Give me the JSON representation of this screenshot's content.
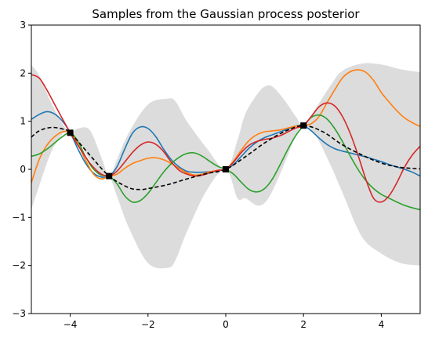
{
  "chart_data": {
    "type": "line",
    "title": "Samples from the Gaussian process posterior",
    "xlabel": "",
    "ylabel": "",
    "xlim": [
      -5,
      5
    ],
    "ylim": [
      -3,
      3
    ],
    "x_ticks": [
      -4,
      -2,
      0,
      2,
      4
    ],
    "x_tick_labels": [
      "−4",
      "−2",
      "0",
      "2",
      "4"
    ],
    "y_ticks": [
      -3,
      -2,
      -1,
      0,
      1,
      2,
      3
    ],
    "y_tick_labels": [
      "−3",
      "−2",
      "−1",
      "0",
      "1",
      "2",
      "3"
    ],
    "grid": false,
    "legend": "none",
    "observations": {
      "x": [
        -4,
        -3,
        0,
        2
      ],
      "y": [
        0.76,
        -0.14,
        0.0,
        0.91
      ],
      "color": "#000000"
    },
    "posterior_mean": {
      "color": "#000000",
      "style": "dashed",
      "x": [
        -5,
        -4.8,
        -4.5,
        -4.2,
        -4,
        -3.5,
        -3,
        -2.5,
        -2.2,
        -2,
        -1.5,
        -1,
        -0.5,
        0,
        0.5,
        1,
        1.5,
        2,
        2.5,
        3,
        3.5,
        4,
        4.5,
        5
      ],
      "y": [
        0.67,
        0.8,
        0.87,
        0.84,
        0.76,
        0.3,
        -0.14,
        -0.38,
        -0.42,
        -0.4,
        -0.32,
        -0.2,
        -0.09,
        0.0,
        0.26,
        0.55,
        0.78,
        0.91,
        0.78,
        0.51,
        0.3,
        0.13,
        0.04,
        0.01
      ]
    },
    "confidence_band": {
      "color": "#dcdcdc",
      "x": [
        -5,
        -4.8,
        -4.5,
        -4.2,
        -4,
        -3.8,
        -3.5,
        -3.2,
        -3,
        -2.8,
        -2.5,
        -2,
        -1.5,
        -1.3,
        -1,
        -0.5,
        0,
        0.3,
        0.5,
        0.8,
        1,
        1.2,
        1.5,
        1.8,
        2,
        2.3,
        2.7,
        3,
        3.5,
        4,
        4.5,
        5
      ],
      "upper": [
        2.17,
        1.95,
        1.4,
        0.95,
        0.76,
        0.85,
        0.82,
        0.25,
        -0.14,
        0.2,
        0.75,
        1.35,
        1.47,
        1.42,
        1.0,
        0.45,
        0.0,
        0.6,
        1.15,
        1.55,
        1.72,
        1.72,
        1.45,
        1.1,
        0.91,
        1.25,
        1.75,
        2.05,
        2.2,
        2.18,
        2.08,
        2.02
      ],
      "lower": [
        -0.83,
        -0.35,
        0.34,
        0.73,
        0.76,
        0.6,
        0.2,
        -0.2,
        -0.14,
        -0.55,
        -1.2,
        -1.95,
        -2.05,
        -1.9,
        -1.3,
        -0.45,
        0.0,
        -0.6,
        -0.6,
        -0.75,
        -0.7,
        -0.45,
        0.1,
        0.7,
        0.91,
        0.72,
        0.08,
        -0.48,
        -1.4,
        -1.75,
        -1.95,
        -2.0
      ]
    },
    "series": [
      {
        "color": "#1f77b4",
        "x": [
          -5,
          -4.8,
          -4.6,
          -4.4,
          -4.2,
          -4,
          -3.8,
          -3.6,
          -3.4,
          -3.2,
          -3,
          -2.8,
          -2.6,
          -2.4,
          -2.2,
          -2,
          -1.8,
          -1.6,
          -1.4,
          -1.2,
          -1,
          -0.8,
          -0.6,
          -0.4,
          -0.2,
          0,
          0.2,
          0.4,
          0.6,
          0.8,
          1,
          1.2,
          1.4,
          1.6,
          1.8,
          2,
          2.2,
          2.4,
          2.6,
          2.8,
          3,
          3.2,
          3.4,
          3.6,
          3.8,
          4,
          4.2,
          4.4,
          4.6,
          4.8,
          5
        ],
        "y": [
          1.04,
          1.14,
          1.2,
          1.15,
          1.0,
          0.76,
          0.42,
          0.12,
          -0.08,
          -0.16,
          -0.14,
          0.05,
          0.42,
          0.75,
          0.88,
          0.85,
          0.68,
          0.42,
          0.2,
          0.05,
          -0.04,
          -0.06,
          -0.06,
          -0.05,
          -0.03,
          0.0,
          0.1,
          0.27,
          0.44,
          0.57,
          0.66,
          0.72,
          0.78,
          0.84,
          0.9,
          0.91,
          0.8,
          0.65,
          0.52,
          0.43,
          0.38,
          0.34,
          0.3,
          0.26,
          0.21,
          0.16,
          0.1,
          0.05,
          0.0,
          -0.06,
          -0.14
        ]
      },
      {
        "color": "#ff7f0e",
        "x": [
          -5,
          -4.8,
          -4.6,
          -4.4,
          -4.2,
          -4,
          -3.8,
          -3.6,
          -3.4,
          -3.2,
          -3,
          -2.8,
          -2.6,
          -2.4,
          -2.2,
          -2,
          -1.8,
          -1.6,
          -1.4,
          -1.2,
          -1,
          -0.8,
          -0.6,
          -0.4,
          -0.2,
          0,
          0.2,
          0.4,
          0.6,
          0.8,
          1,
          1.2,
          1.4,
          1.6,
          1.8,
          2,
          2.2,
          2.4,
          2.6,
          2.8,
          3,
          3.2,
          3.4,
          3.6,
          3.8,
          4,
          4.2,
          4.4,
          4.6,
          4.8,
          5
        ],
        "y": [
          -0.28,
          0.2,
          0.5,
          0.68,
          0.78,
          0.76,
          0.52,
          0.18,
          -0.1,
          -0.2,
          -0.14,
          -0.1,
          0.02,
          0.12,
          0.18,
          0.23,
          0.24,
          0.2,
          0.12,
          0.02,
          -0.07,
          -0.12,
          -0.1,
          -0.05,
          -0.02,
          0.0,
          0.17,
          0.4,
          0.6,
          0.72,
          0.78,
          0.8,
          0.82,
          0.86,
          0.9,
          0.91,
          0.95,
          1.1,
          1.38,
          1.65,
          1.9,
          2.03,
          2.07,
          2.02,
          1.85,
          1.6,
          1.4,
          1.22,
          1.07,
          0.97,
          0.89
        ]
      },
      {
        "color": "#2ca02c",
        "x": [
          -5,
          -4.8,
          -4.6,
          -4.4,
          -4.2,
          -4,
          -3.8,
          -3.6,
          -3.4,
          -3.2,
          -3,
          -2.8,
          -2.6,
          -2.4,
          -2.2,
          -2,
          -1.8,
          -1.6,
          -1.4,
          -1.2,
          -1,
          -0.8,
          -0.6,
          -0.4,
          -0.2,
          0,
          0.2,
          0.4,
          0.6,
          0.8,
          1,
          1.2,
          1.4,
          1.6,
          1.8,
          2,
          2.2,
          2.4,
          2.6,
          2.8,
          3,
          3.2,
          3.4,
          3.6,
          3.8,
          4,
          4.2,
          4.4,
          4.6,
          4.8,
          5
        ],
        "y": [
          0.27,
          0.32,
          0.42,
          0.55,
          0.68,
          0.76,
          0.58,
          0.25,
          0.0,
          -0.12,
          -0.14,
          -0.3,
          -0.55,
          -0.68,
          -0.65,
          -0.5,
          -0.28,
          -0.06,
          0.12,
          0.25,
          0.33,
          0.34,
          0.27,
          0.16,
          0.06,
          0.0,
          -0.1,
          -0.27,
          -0.42,
          -0.47,
          -0.4,
          -0.2,
          0.1,
          0.42,
          0.7,
          0.91,
          1.08,
          1.13,
          1.05,
          0.85,
          0.58,
          0.28,
          0.0,
          -0.23,
          -0.4,
          -0.52,
          -0.6,
          -0.68,
          -0.75,
          -0.8,
          -0.84
        ]
      },
      {
        "color": "#d62728",
        "x": [
          -5,
          -4.8,
          -4.6,
          -4.4,
          -4.2,
          -4,
          -3.8,
          -3.6,
          -3.4,
          -3.2,
          -3,
          -2.8,
          -2.6,
          -2.4,
          -2.2,
          -2,
          -1.8,
          -1.6,
          -1.4,
          -1.2,
          -1,
          -0.8,
          -0.6,
          -0.4,
          -0.2,
          0,
          0.2,
          0.4,
          0.6,
          0.8,
          1,
          1.2,
          1.4,
          1.6,
          1.8,
          2,
          2.2,
          2.4,
          2.6,
          2.8,
          3,
          3.2,
          3.4,
          3.6,
          3.8,
          4,
          4.2,
          4.4,
          4.6,
          4.8,
          5
        ],
        "y": [
          1.97,
          1.9,
          1.65,
          1.35,
          1.05,
          0.76,
          0.5,
          0.25,
          0.04,
          -0.1,
          -0.14,
          -0.04,
          0.15,
          0.35,
          0.5,
          0.57,
          0.52,
          0.37,
          0.15,
          -0.02,
          -0.1,
          -0.14,
          -0.12,
          -0.07,
          -0.02,
          0.0,
          0.15,
          0.35,
          0.5,
          0.58,
          0.62,
          0.65,
          0.7,
          0.78,
          0.86,
          0.91,
          1.1,
          1.3,
          1.38,
          1.32,
          1.1,
          0.75,
          0.3,
          -0.2,
          -0.6,
          -0.68,
          -0.55,
          -0.28,
          0.05,
          0.3,
          0.48
        ]
      }
    ]
  }
}
